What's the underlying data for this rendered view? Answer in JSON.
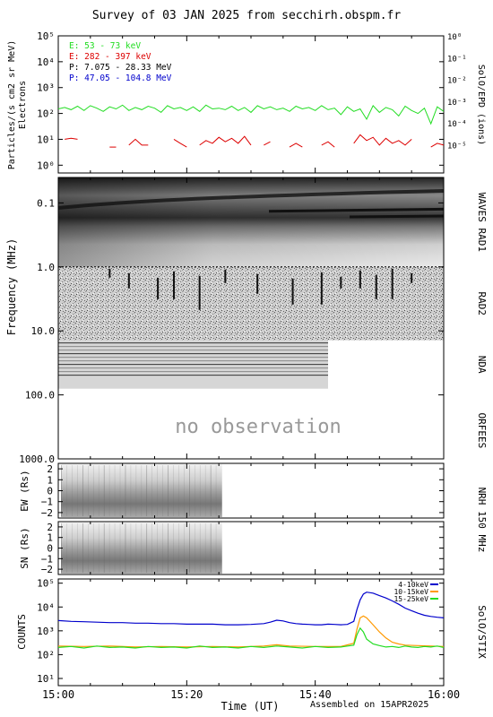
{
  "title": "Survey of 03 JAN 2025 from secchirh.obspm.fr",
  "footer": "Assembled on 15APR2025",
  "colors": {
    "green": "#22dd22",
    "red": "#dd0000",
    "black": "#000000",
    "blue": "#0000cc",
    "orange": "#ff9900",
    "gray_text": "#999999"
  },
  "chart_data": [
    {
      "id": "particles",
      "type": "line",
      "ylabel": "Particles/(s cm2 sr MeV)",
      "ylabel2": "Electrons",
      "yscale": "log",
      "ylim": [
        0.5,
        100000
      ],
      "yticks": [
        {
          "v": 1,
          "label": "10⁰"
        },
        {
          "v": 10,
          "label": "10¹"
        },
        {
          "v": 100,
          "label": "10²"
        },
        {
          "v": 1000,
          "label": "10³"
        },
        {
          "v": 10000,
          "label": "10⁴"
        },
        {
          "v": 100000,
          "label": "10⁵"
        }
      ],
      "right_label": "SolO/EPD (ions)",
      "right_ylim": [
        5e-07,
        1
      ],
      "right_ticks": [
        {
          "v": 1,
          "label": "10⁰"
        },
        {
          "v": 0.1,
          "label": "10⁻¹"
        },
        {
          "v": 0.01,
          "label": "10⁻²"
        },
        {
          "v": 0.001,
          "label": "10⁻³"
        },
        {
          "v": 0.0001,
          "label": "10⁻⁴"
        },
        {
          "v": 1e-05,
          "label": "10⁻⁵"
        }
      ],
      "legend": [
        {
          "label": "E: 53 - 73 keV",
          "color": "#22dd22"
        },
        {
          "label": "E: 282 - 397 keV",
          "color": "#dd0000"
        },
        {
          "label": "P: 7.075 - 28.33 MeV",
          "color": "#000000"
        },
        {
          "label": "P: 47.05 - 104.8 MeV",
          "color": "#0000cc"
        }
      ],
      "series": [
        {
          "name": "E: 53 - 73 keV",
          "color": "#22dd22",
          "x": [
            0,
            1,
            2,
            3,
            4,
            5,
            6,
            7,
            8,
            9,
            10,
            11,
            12,
            13,
            14,
            15,
            16,
            17,
            18,
            19,
            20,
            21,
            22,
            23,
            24,
            25,
            26,
            27,
            28,
            29,
            30,
            31,
            32,
            33,
            34,
            35,
            36,
            37,
            38,
            39,
            40,
            41,
            42,
            43,
            44,
            45,
            46,
            47,
            48,
            49,
            50,
            51,
            52,
            53,
            54,
            55,
            56,
            57,
            58,
            59,
            60
          ],
          "y": [
            150,
            170,
            140,
            190,
            130,
            200,
            160,
            120,
            180,
            150,
            210,
            130,
            170,
            140,
            190,
            160,
            110,
            200,
            150,
            170,
            130,
            180,
            120,
            210,
            150,
            160,
            140,
            190,
            130,
            170,
            110,
            200,
            150,
            180,
            140,
            160,
            120,
            190,
            150,
            170,
            130,
            200,
            140,
            160,
            90,
            180,
            120,
            150,
            60,
            200,
            110,
            170,
            140,
            80,
            190,
            130,
            100,
            160,
            40,
            180,
            120
          ]
        },
        {
          "name": "E: 282 - 397 keV",
          "color": "#dd0000",
          "segments": [
            [
              [
                1,
                10
              ],
              [
                2,
                11
              ],
              [
                3,
                10
              ]
            ],
            [
              [
                8,
                5
              ],
              [
                9,
                5
              ]
            ],
            [
              [
                11,
                6
              ],
              [
                12,
                10
              ],
              [
                13,
                6
              ],
              [
                14,
                6
              ]
            ],
            [
              [
                18,
                10
              ],
              [
                19,
                7
              ],
              [
                20,
                5
              ]
            ],
            [
              [
                22,
                6
              ],
              [
                23,
                9
              ],
              [
                24,
                7
              ],
              [
                25,
                12
              ],
              [
                26,
                8
              ],
              [
                27,
                11
              ],
              [
                28,
                7
              ],
              [
                29,
                13
              ],
              [
                30,
                6
              ]
            ],
            [
              [
                32,
                6
              ],
              [
                33,
                8
              ]
            ],
            [
              [
                36,
                5
              ],
              [
                37,
                7
              ],
              [
                38,
                5
              ]
            ],
            [
              [
                41,
                6
              ],
              [
                42,
                8
              ],
              [
                43,
                5
              ]
            ],
            [
              [
                46,
                7
              ],
              [
                47,
                15
              ],
              [
                48,
                9
              ],
              [
                49,
                12
              ],
              [
                50,
                6
              ],
              [
                51,
                11
              ],
              [
                52,
                7
              ],
              [
                53,
                9
              ],
              [
                54,
                6
              ],
              [
                55,
                10
              ]
            ],
            [
              [
                58,
                5
              ],
              [
                59,
                7
              ],
              [
                60,
                6
              ]
            ]
          ]
        }
      ]
    },
    {
      "id": "spectrogram",
      "type": "heatmap",
      "ylabel": "Frequency (MHz)",
      "yscale": "log",
      "ylim": [
        1000,
        0.04
      ],
      "yticks": [
        {
          "v": 0.1,
          "label": "0.1"
        },
        {
          "v": 1,
          "label": "1.0"
        },
        {
          "v": 10,
          "label": "10.0"
        },
        {
          "v": 100,
          "label": "100.0"
        },
        {
          "v": 1000,
          "label": "1000.0"
        }
      ],
      "instruments": [
        {
          "label": "WAVES RAD1",
          "flo": 0.04,
          "fhi": 1
        },
        {
          "label": "RAD2",
          "flo": 1,
          "fhi": 14
        },
        {
          "label": "NDA",
          "flo": 14,
          "fhi": 80
        },
        {
          "label": "ORFEES",
          "flo": 130,
          "fhi": 1000
        }
      ],
      "annotation": "no observation"
    },
    {
      "id": "nrh_ew",
      "type": "heatmap",
      "ylabel": "EW (Rs)",
      "ylim": [
        -2.5,
        2.5
      ],
      "yticks": [
        {
          "v": 2,
          "label": "2"
        },
        {
          "v": 1,
          "label": "1"
        },
        {
          "v": 0,
          "label": "0"
        },
        {
          "v": -1,
          "label": "−1"
        },
        {
          "v": -2,
          "label": "−2"
        }
      ],
      "coverage_end_min": 25.5
    },
    {
      "id": "nrh_sn",
      "type": "heatmap",
      "ylabel": "SN (Rs)",
      "ylim": [
        -2.5,
        2.5
      ],
      "yticks": [
        {
          "v": 2,
          "label": "2"
        },
        {
          "v": 1,
          "label": "1"
        },
        {
          "v": 0,
          "label": "0"
        },
        {
          "v": -1,
          "label": "−1"
        },
        {
          "v": -2,
          "label": "−2"
        }
      ],
      "coverage_end_min": 25.5
    },
    {
      "id": "stix",
      "type": "line",
      "ylabel": "COUNTS",
      "yscale": "log",
      "ylim": [
        5,
        150000
      ],
      "yticks": [
        {
          "v": 10,
          "label": "10¹"
        },
        {
          "v": 100,
          "label": "10²"
        },
        {
          "v": 1000,
          "label": "10³"
        },
        {
          "v": 10000,
          "label": "10⁴"
        },
        {
          "v": 100000,
          "label": "10⁵"
        }
      ],
      "legend": [
        {
          "label": "4-10keV",
          "color": "#0000cc"
        },
        {
          "label": "10-15keV",
          "color": "#ff9900"
        },
        {
          "label": "15-25keV",
          "color": "#22dd22"
        }
      ],
      "series": [
        {
          "name": "4-10keV",
          "color": "#0000cc",
          "x": [
            0,
            2,
            4,
            6,
            8,
            10,
            12,
            14,
            16,
            18,
            20,
            22,
            24,
            26,
            28,
            30,
            32,
            33,
            34,
            35,
            36,
            37,
            38,
            39,
            40,
            41,
            42,
            43,
            44,
            45,
            46,
            46.5,
            47,
            47.5,
            48,
            49,
            50,
            51,
            52,
            53,
            54,
            55,
            56,
            57,
            58,
            59,
            60
          ],
          "y": [
            2700,
            2500,
            2400,
            2300,
            2200,
            2200,
            2100,
            2100,
            2000,
            2000,
            1900,
            1900,
            1900,
            1800,
            1800,
            1850,
            2000,
            2300,
            2800,
            2600,
            2200,
            2000,
            1900,
            1850,
            1800,
            1800,
            1900,
            1850,
            1800,
            1850,
            2500,
            8000,
            20000,
            35000,
            42000,
            38000,
            30000,
            24000,
            18000,
            13000,
            9000,
            7000,
            5500,
            4500,
            4000,
            3700,
            3500
          ]
        },
        {
          "name": "10-15keV",
          "color": "#ff9900",
          "x": [
            0,
            4,
            8,
            12,
            16,
            20,
            24,
            28,
            32,
            34,
            36,
            40,
            44,
            46,
            46.5,
            47,
            47.5,
            48,
            49,
            50,
            51,
            52,
            53,
            54,
            56,
            58,
            60
          ],
          "y": [
            230,
            220,
            230,
            210,
            220,
            210,
            220,
            210,
            230,
            260,
            230,
            220,
            220,
            300,
            1200,
            3500,
            4200,
            3500,
            1800,
            900,
            500,
            330,
            280,
            250,
            240,
            230,
            220
          ]
        },
        {
          "name": "15-25keV",
          "color": "#22dd22",
          "x": [
            0,
            2,
            4,
            6,
            8,
            10,
            12,
            14,
            16,
            18,
            20,
            22,
            24,
            26,
            28,
            30,
            32,
            34,
            36,
            38,
            40,
            42,
            44,
            46,
            46.5,
            47,
            47.5,
            48,
            49,
            50,
            51,
            52,
            53,
            54,
            55,
            56,
            57,
            58,
            59,
            60
          ],
          "y": [
            200,
            220,
            190,
            230,
            200,
            210,
            190,
            220,
            200,
            210,
            190,
            230,
            200,
            210,
            190,
            220,
            200,
            230,
            210,
            190,
            220,
            200,
            210,
            250,
            700,
            1300,
            900,
            450,
            280,
            240,
            210,
            220,
            200,
            230,
            210,
            200,
            220,
            210,
            230,
            200
          ]
        }
      ],
      "right_label": "SolO/STIX"
    }
  ],
  "xaxis": {
    "label": "Time (UT)",
    "xlim": [
      0,
      60
    ],
    "ticks": [
      {
        "v": 0,
        "label": "15:00"
      },
      {
        "v": 20,
        "label": "15:20"
      },
      {
        "v": 40,
        "label": "15:40"
      },
      {
        "v": 60,
        "label": "16:00"
      }
    ]
  },
  "nrh_label": "NRH 150 MHz"
}
